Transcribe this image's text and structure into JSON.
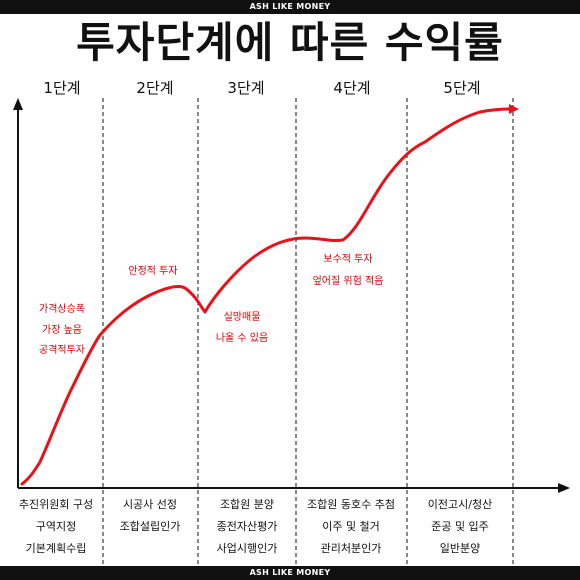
{
  "banner_top": "ASH LIKE MONEY",
  "banner_bottom": "ASH LIKE MONEY",
  "title": "투자단계에 따른 수익률",
  "stages": [
    "1단계",
    "2단계",
    "3단계",
    "4단계",
    "5단계"
  ],
  "annotations": [
    {
      "lines": [
        "가격상승폭",
        "가장 높음",
        "공격적투자"
      ]
    },
    {
      "lines": [
        "안정적 투자"
      ]
    },
    {
      "lines": [
        "실망매물",
        "나올 수 있음"
      ]
    },
    {
      "lines": [
        "보수적 투자",
        "엎어질 위험 적음"
      ]
    }
  ],
  "bottom_labels": [
    [
      "추진위원회 구성",
      "구역지정",
      "기본계획수립"
    ],
    [
      "시공사 선정",
      "조합설립인가"
    ],
    [
      "조합원 분양",
      "종전자산평가",
      "사업시행인가"
    ],
    [
      "조합원 동호수 추첨",
      "이주 및 철거",
      "관리처분인가"
    ],
    [
      "이전고시/청산",
      "준공 및 입주",
      "일반분양"
    ]
  ],
  "colors": {
    "curve": "#e8121b",
    "axis": "#111111",
    "note": "#e00000"
  }
}
